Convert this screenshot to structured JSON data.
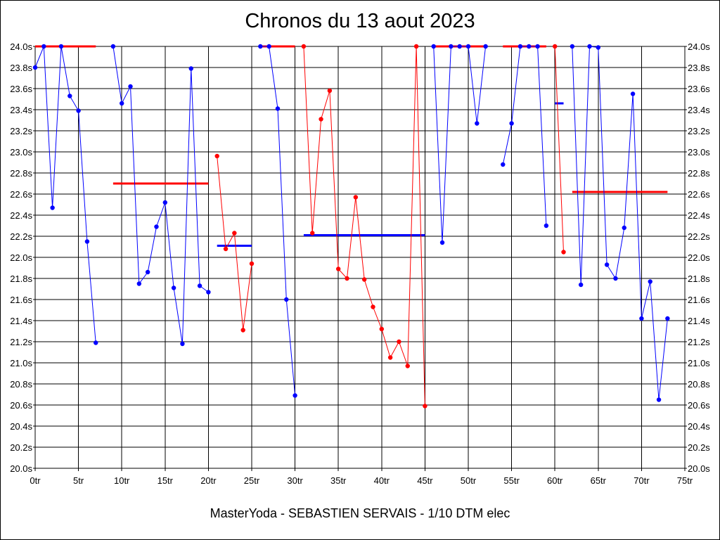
{
  "chart_data": {
    "type": "line",
    "title": "Chronos du 13 aout 2023",
    "subtitle": "MasterYoda - SEBASTIEN SERVAIS - 1/10 DTM elec",
    "xlabel": "",
    "ylabel": "",
    "xlim": [
      0,
      75
    ],
    "ylim": [
      20.0,
      24.0
    ],
    "grid": true,
    "x_ticks": [
      0,
      5,
      10,
      15,
      20,
      25,
      30,
      35,
      40,
      45,
      50,
      55,
      60,
      65,
      70,
      75
    ],
    "x_tick_suffix": "tr",
    "y_ticks": [
      20.0,
      20.2,
      20.4,
      20.6,
      20.8,
      21.0,
      21.2,
      21.4,
      21.6,
      21.8,
      22.0,
      22.2,
      22.4,
      22.6,
      22.8,
      23.0,
      23.2,
      23.4,
      23.6,
      23.8,
      24.0
    ],
    "y_tick_suffix": "s",
    "y_axis_both_sides": true,
    "series": [
      {
        "color": "#0000ff",
        "segments": [
          [
            [
              0,
              23.8
            ],
            [
              1,
              24.0
            ],
            [
              2,
              22.47
            ],
            [
              3,
              24.0
            ],
            [
              4,
              23.53
            ],
            [
              5,
              23.39
            ],
            [
              6,
              22.15
            ],
            [
              7,
              21.19
            ]
          ],
          [
            [
              9,
              24.0
            ],
            [
              10,
              23.46
            ],
            [
              11,
              23.62
            ],
            [
              12,
              21.75
            ],
            [
              13,
              21.86
            ],
            [
              14,
              22.29
            ],
            [
              15,
              22.52
            ],
            [
              16,
              21.71
            ],
            [
              17,
              21.18
            ],
            [
              18,
              23.79
            ],
            [
              19,
              21.73
            ],
            [
              20,
              21.67
            ]
          ],
          [
            [
              26,
              24.0
            ],
            [
              27,
              24.0
            ],
            [
              28,
              23.41
            ],
            [
              29,
              21.6
            ],
            [
              30,
              20.69
            ]
          ],
          [
            [
              46,
              24.0
            ],
            [
              47,
              22.14
            ],
            [
              48,
              24.0
            ],
            [
              49,
              24.0
            ],
            [
              50,
              24.0
            ],
            [
              51,
              23.27
            ],
            [
              52,
              24.0
            ]
          ],
          [
            [
              54,
              22.88
            ],
            [
              55,
              23.27
            ],
            [
              56,
              24.0
            ],
            [
              57,
              24.0
            ],
            [
              58,
              24.0
            ],
            [
              59,
              22.3
            ]
          ],
          [
            [
              62,
              24.0
            ],
            [
              63,
              21.74
            ],
            [
              64,
              24.0
            ],
            [
              65,
              23.99
            ],
            [
              66,
              21.93
            ],
            [
              67,
              21.8
            ],
            [
              68,
              22.28
            ],
            [
              69,
              23.55
            ],
            [
              70,
              21.42
            ],
            [
              71,
              21.77
            ],
            [
              72,
              20.65
            ],
            [
              73,
              21.42
            ]
          ]
        ]
      },
      {
        "color": "#ff0000",
        "segments": [
          [
            [
              21,
              22.96
            ],
            [
              22,
              22.08
            ],
            [
              23,
              22.23
            ],
            [
              24,
              21.31
            ],
            [
              25,
              21.94
            ]
          ],
          [
            [
              31,
              24.0
            ],
            [
              32,
              22.23
            ],
            [
              33,
              23.31
            ],
            [
              34,
              23.58
            ],
            [
              35,
              21.89
            ],
            [
              36,
              21.8
            ],
            [
              37,
              22.57
            ],
            [
              38,
              21.79
            ],
            [
              39,
              21.53
            ],
            [
              40,
              21.32
            ],
            [
              41,
              21.05
            ],
            [
              42,
              21.2
            ],
            [
              43,
              20.97
            ],
            [
              44,
              24.0
            ],
            [
              45,
              20.59
            ]
          ],
          [
            [
              60,
              24.0
            ],
            [
              61,
              22.05
            ]
          ]
        ]
      }
    ],
    "averages": [
      {
        "color": "#ff0000",
        "x": [
          0,
          7
        ],
        "y": 24.0
      },
      {
        "color": "#ff0000",
        "x": [
          9,
          20
        ],
        "y": 22.7
      },
      {
        "color": "#0000ff",
        "x": [
          21,
          25
        ],
        "y": 22.11
      },
      {
        "color": "#ff0000",
        "x": [
          26,
          30
        ],
        "y": 24.0
      },
      {
        "color": "#0000ff",
        "x": [
          31,
          45
        ],
        "y": 22.21
      },
      {
        "color": "#ff0000",
        "x": [
          46,
          52
        ],
        "y": 24.0
      },
      {
        "color": "#ff0000",
        "x": [
          54,
          59
        ],
        "y": 24.0
      },
      {
        "color": "#0000ff",
        "x": [
          60,
          61
        ],
        "y": 23.46
      },
      {
        "color": "#ff0000",
        "x": [
          62,
          73
        ],
        "y": 22.62
      }
    ]
  }
}
